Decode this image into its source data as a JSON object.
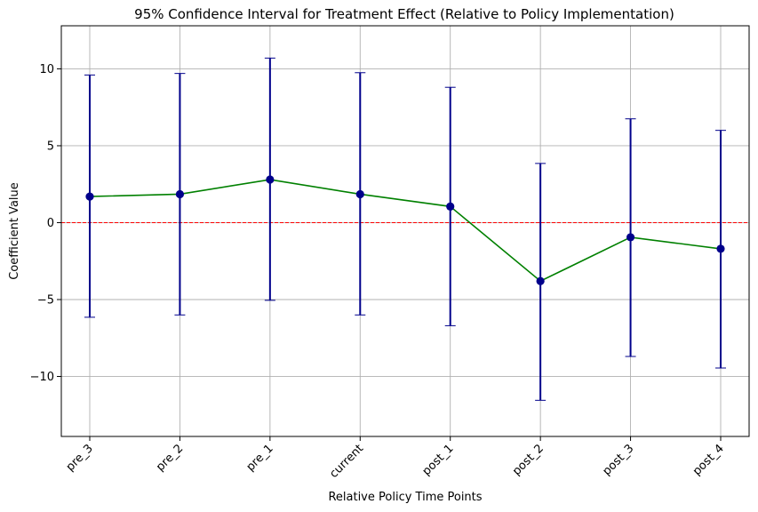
{
  "chart_data": {
    "type": "line",
    "title": "95% Confidence Interval for Treatment Effect (Relative to Policy Implementation)",
    "xlabel": "Relative Policy Time Points",
    "ylabel": "Coefficient Value",
    "categories": [
      "pre_3",
      "pre_2",
      "pre_1",
      "current",
      "post_1",
      "post_2",
      "post_3",
      "post_4"
    ],
    "series": [
      {
        "values": [
          1.7,
          1.85,
          2.8,
          1.85,
          1.05,
          -3.8,
          -0.95,
          -1.7
        ],
        "lower": [
          -6.15,
          -6.0,
          -5.05,
          -6.0,
          -6.7,
          -11.55,
          -8.7,
          -9.45
        ],
        "upper": [
          9.6,
          9.7,
          10.7,
          9.75,
          8.8,
          3.85,
          6.75,
          6.0
        ]
      }
    ],
    "ylim": [
      -13.9,
      12.8
    ],
    "yticks": [
      -10,
      -5,
      0,
      5,
      10
    ],
    "ytick_labels": [
      "−10",
      "−5",
      "0",
      "5",
      "10"
    ],
    "reference_line": {
      "y": 0,
      "style": "dashed",
      "color": "#ff0000"
    },
    "grid": true,
    "colors": {
      "line": "#008000",
      "marker": "#00008b",
      "errorbar": "#00008b"
    }
  }
}
